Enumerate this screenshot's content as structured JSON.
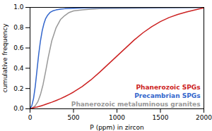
{
  "chart_data": {
    "type": "line",
    "title": "",
    "xlabel": "P (ppm) in zircon",
    "ylabel": "cumulative frequency",
    "xlim": [
      0,
      2000
    ],
    "ylim": [
      0,
      1
    ],
    "xticks": [
      0,
      500,
      1000,
      1500,
      2000
    ],
    "yticks": [
      {
        "value": 0,
        "label": "0.0"
      },
      0.2,
      0.4,
      0.6,
      0.8,
      {
        "value": 1.0,
        "label": "1.0"
      }
    ],
    "grid": false,
    "legend": "lower right",
    "series": [
      {
        "name": "Phanerozoic metaluminous granites",
        "color": "#999999",
        "x": [
          0,
          30,
          60,
          90,
          120,
          150,
          180,
          210,
          250,
          300,
          350,
          400,
          450,
          500,
          600,
          700,
          800,
          2000
        ],
        "values": [
          0,
          0.01,
          0.03,
          0.07,
          0.14,
          0.24,
          0.37,
          0.51,
          0.67,
          0.8,
          0.88,
          0.92,
          0.95,
          0.965,
          0.975,
          0.982,
          0.988,
          1.0
        ]
      },
      {
        "name": "Precambrian SPGs",
        "color": "#3366cc",
        "x": [
          0,
          20,
          40,
          60,
          80,
          100,
          120,
          140,
          160,
          180,
          200,
          230,
          260,
          300,
          350,
          400,
          500,
          600,
          700,
          2000
        ],
        "values": [
          0,
          0.03,
          0.1,
          0.22,
          0.38,
          0.54,
          0.67,
          0.77,
          0.84,
          0.89,
          0.92,
          0.95,
          0.965,
          0.975,
          0.982,
          0.987,
          0.992,
          0.995,
          0.997,
          1.0
        ]
      },
      {
        "name": "Phanerozoic SPGs",
        "color": "#cc2222",
        "x": [
          0,
          20,
          40,
          60,
          80,
          100,
          130,
          160,
          200,
          250,
          300,
          350,
          400,
          450,
          500,
          600,
          700,
          800,
          900,
          1000,
          1100,
          1200,
          1300,
          1400,
          1500,
          1600,
          1700,
          1800,
          1900,
          2000
        ],
        "values": [
          0,
          0.005,
          0.01,
          0.015,
          0.018,
          0.022,
          0.03,
          0.038,
          0.05,
          0.065,
          0.082,
          0.1,
          0.12,
          0.142,
          0.165,
          0.22,
          0.285,
          0.36,
          0.44,
          0.52,
          0.6,
          0.68,
          0.75,
          0.81,
          0.86,
          0.9,
          0.93,
          0.955,
          0.975,
          0.995
        ]
      }
    ]
  }
}
